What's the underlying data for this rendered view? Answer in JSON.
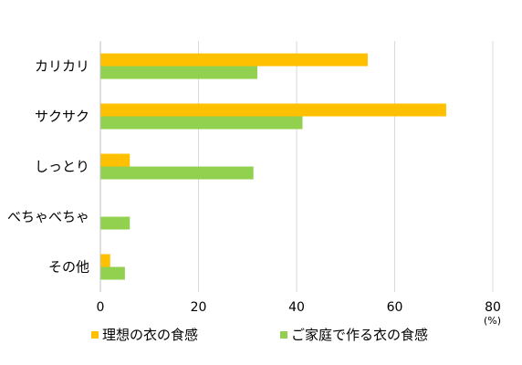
{
  "chart_data": {
    "type": "bar",
    "orientation": "horizontal",
    "categories": [
      "カリカリ",
      "サクサク",
      "しっとり",
      "べちゃべちゃ",
      "その他"
    ],
    "series": [
      {
        "name": "理想の衣の食感",
        "color": "#FFC000",
        "values": [
          54.5,
          70.5,
          6.0,
          0,
          2.0
        ]
      },
      {
        "name": "ご家庭で作る衣の食感",
        "color": "#92D050",
        "values": [
          32.0,
          41.2,
          31.2,
          6.0,
          5.0
        ]
      }
    ],
    "x_ticks": [
      "0",
      "20",
      "40",
      "60",
      "80"
    ],
    "xlim": [
      0,
      80
    ],
    "unit": "(%)",
    "title": "",
    "xlabel": "",
    "ylabel": "",
    "grid": "vertical",
    "legend_position": "bottom"
  }
}
